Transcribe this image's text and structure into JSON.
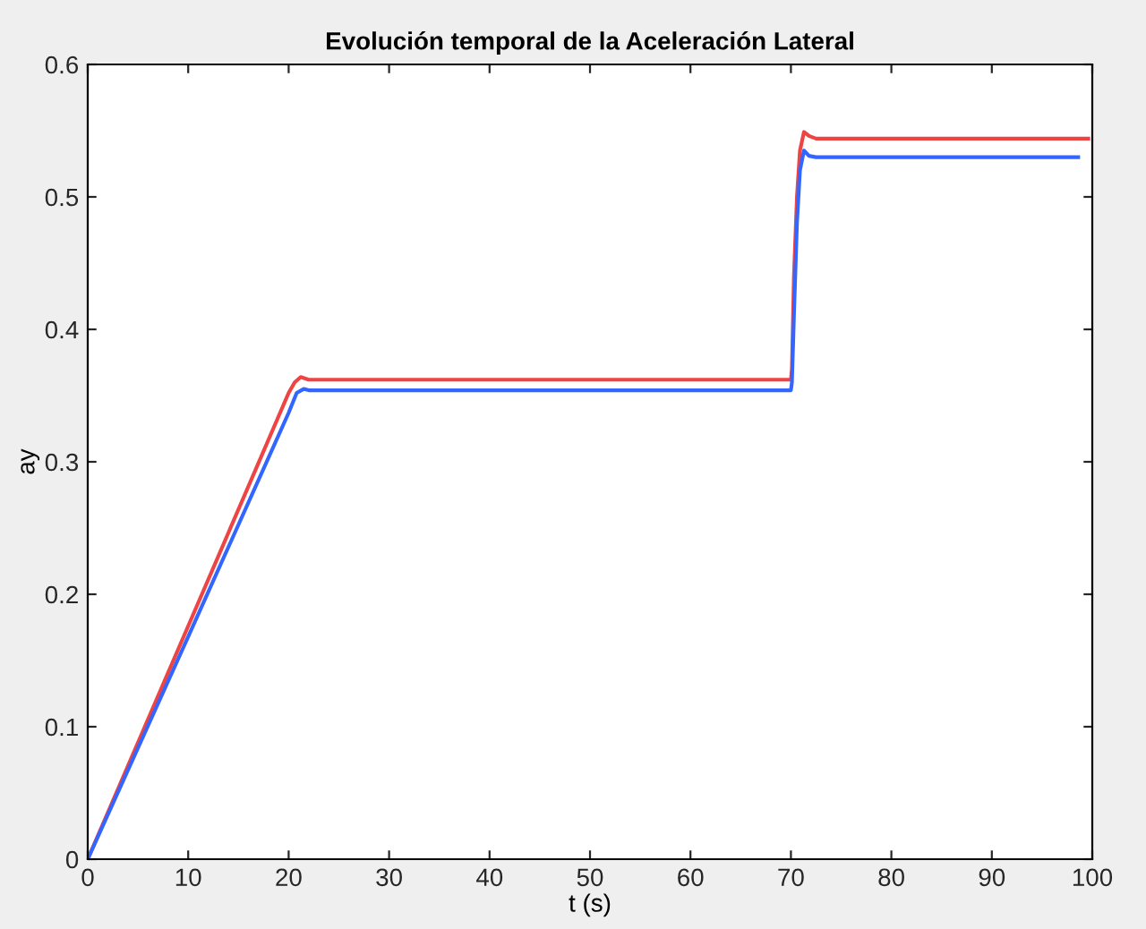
{
  "chart_data": {
    "type": "line",
    "title": "Evolución temporal de la Aceleración Lateral",
    "xlabel": "t (s)",
    "ylabel": "ay",
    "xlim": [
      0,
      100
    ],
    "ylim": [
      0,
      0.6
    ],
    "xticks": [
      0,
      10,
      20,
      30,
      40,
      50,
      60,
      70,
      80,
      90,
      100
    ],
    "yticks": [
      0,
      0.1,
      0.2,
      0.3,
      0.4,
      0.5,
      0.6
    ],
    "grid": false,
    "legend": false,
    "marker": "none",
    "line_style": "solid",
    "series": [
      {
        "color": "#ee4444",
        "x": [
          0,
          10,
          20,
          20.6,
          21.2,
          22,
          40,
          60,
          70,
          70.1,
          70.3,
          70.6,
          70.9,
          71.3,
          71.8,
          72.5,
          80,
          90,
          99.6
        ],
        "values": [
          0,
          0.176,
          0.352,
          0.36,
          0.364,
          0.362,
          0.362,
          0.362,
          0.362,
          0.37,
          0.44,
          0.5,
          0.535,
          0.549,
          0.546,
          0.544,
          0.544,
          0.544,
          0.544
        ]
      },
      {
        "color": "#3366ff",
        "x": [
          0,
          10,
          20,
          20.8,
          21.5,
          22,
          40,
          60,
          70,
          70.1,
          70.3,
          70.6,
          70.9,
          71.3,
          71.8,
          72.5,
          80,
          90,
          98.6
        ],
        "values": [
          0,
          0.168,
          0.337,
          0.352,
          0.355,
          0.354,
          0.354,
          0.354,
          0.354,
          0.36,
          0.41,
          0.48,
          0.52,
          0.535,
          0.531,
          0.53,
          0.53,
          0.53,
          0.53
        ]
      }
    ]
  }
}
